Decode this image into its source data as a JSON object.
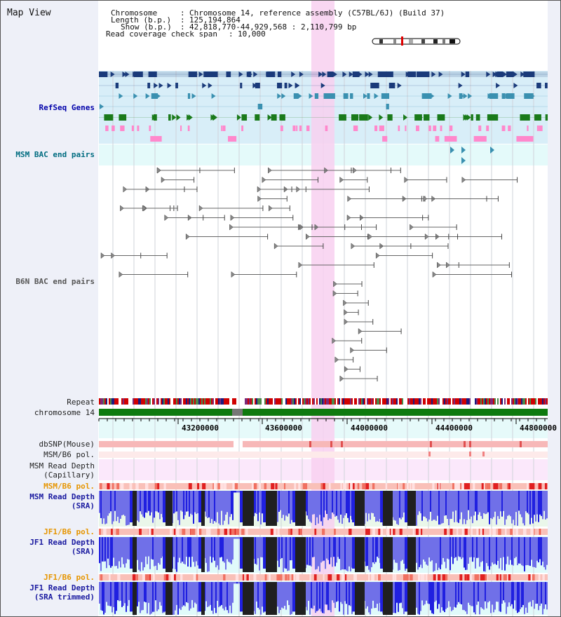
{
  "title": "Map View",
  "info": {
    "chromosome_label": "Chromosome",
    "chromosome_value": "Chromosome 14, reference assembly (C57BL/6J) (Build 37)",
    "length_label": "Length (b.p.)",
    "length_value": "125,194,864",
    "show_label": "Show (b.p.)",
    "show_value": "42,818,770-44,929,568 : 2,110,799 bp",
    "coverage_label": "Read coverage check span",
    "coverage_value": "10,000"
  },
  "tracks": {
    "refseq": "RefSeq Genes",
    "msm_bac": "MSM BAC end pairs",
    "b6n_bac": "B6N BAC end pairs",
    "repeat": "Repeat",
    "chromosome": "chromosome 14",
    "dbsnp": "dbSNP(Mouse)",
    "msm_b6_pol_1": "MSM/B6 pol.",
    "msm_read_cap_1": "MSM Read Depth",
    "msm_read_cap_2": "(Capillary)",
    "msm_b6_pol_2": "MSM/B6 pol.",
    "msm_read_sra_1": "MSM Read Depth",
    "msm_read_sra_2": "(SRA)",
    "jf1_b6_pol_1": "JF1/B6 pol.",
    "jf1_read_sra_1": "JF1 Read Depth",
    "jf1_read_sra_2": "(SRA)",
    "jf1_b6_pol_2": "JF1/B6 pol.",
    "jf1_trim_1": "JF1 Read Depth",
    "jf1_trim_2": "(SRA trimmed)"
  },
  "axis": {
    "ticks": [
      "43200000",
      "43600000",
      "44000000",
      "44400000",
      "44800000"
    ]
  },
  "colors": {
    "highlight": "#f8d0f0",
    "refseq_bg": "#d8eef8",
    "msm_bg": "#e4fafa",
    "navy_gene": "#1a3a7a",
    "teal_gene": "#3a90b0",
    "green_gene": "#1a7a1a",
    "pink_gene": "#ff88cc",
    "chromosome_bar": "#0f7a0f",
    "depth_blue": "#2020e0",
    "depth_light": "#7070e8",
    "depth_dark": "#202020"
  }
}
